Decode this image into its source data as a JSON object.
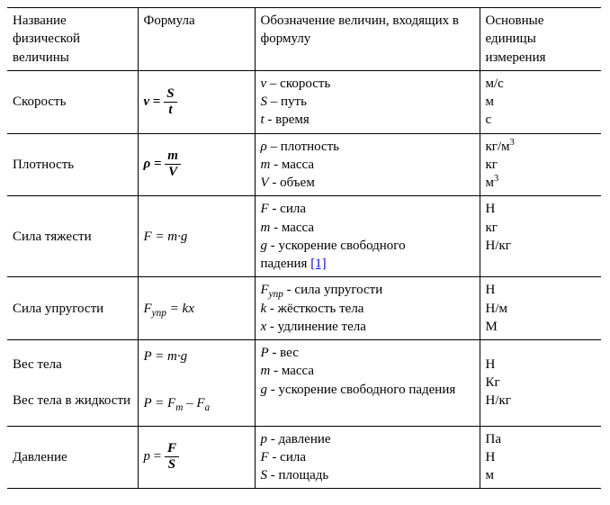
{
  "table": {
    "headers": {
      "c1": "Название физической величины",
      "c2": "Формула",
      "c3": "Обозначение величин, входящих в формулу",
      "c4": "Основные единицы измерения"
    },
    "rows": [
      {
        "name": "Скорость",
        "formula": {
          "kind": "frac",
          "lhs_sym": "v",
          "num": "S",
          "den": "t",
          "bold": true
        },
        "defs": [
          {
            "sym": "v",
            "dash": "–",
            "text": "скорость",
            "ital": true
          },
          {
            "sym": "S",
            "dash": "–",
            "text": "путь",
            "ital": true
          },
          {
            "sym": "t",
            "dash": "-",
            "text": "время",
            "ital": true
          }
        ],
        "units": [
          "м/с",
          "м",
          "с"
        ]
      },
      {
        "name": "Плотность",
        "formula": {
          "kind": "frac",
          "lhs_sym": "ρ",
          "num": "m",
          "den": "V",
          "bold": true
        },
        "defs": [
          {
            "sym": "ρ",
            "dash": "–",
            "text": "плотность",
            "ital": true
          },
          {
            "sym": "m",
            "dash": "-",
            "text": "масса",
            "ital": true
          },
          {
            "sym": "V",
            "dash": "-",
            "text": "объем",
            "ital": true
          }
        ],
        "units": [
          "кг/м³",
          "кг",
          "м³"
        ]
      },
      {
        "name": "Сила тяжести",
        "formula": {
          "kind": "plain",
          "text": "F = m·g",
          "ital": true
        },
        "defs": [
          {
            "sym": "F",
            "dash": "-",
            "text": "сила",
            "ital": true
          },
          {
            "sym": "m",
            "dash": "-",
            "text": "масса",
            "ital": true
          },
          {
            "sym": "g",
            "dash": "-",
            "text": "ускорение свободного",
            "ital": true
          },
          {
            "raw": "падения",
            "ref": "[1]"
          }
        ],
        "units": [
          "Н",
          "кг",
          " Н/кг"
        ]
      },
      {
        "name": "Сила упругости",
        "formula": {
          "kind": "sub",
          "lhs": "F",
          "sub": "упр",
          "rhs": " = kx",
          "ital": true
        },
        "defs": [
          {
            "sym_sub": {
              "base": "F",
              "sub": "упр"
            },
            "dash": "-",
            "text": "сила упругости",
            "ital": true
          },
          {
            "sym": "k",
            "dash": "-",
            "text": "жёсткость тела",
            "ital": true
          },
          {
            "sym": "x",
            "dash": "-",
            "text": "удлинение тела",
            "ital": true
          }
        ],
        "units": [
          "Н",
          "Н/м",
          "М"
        ]
      },
      {
        "name_multi": [
          "Вес тела",
          "",
          "Вес тела в жидкости"
        ],
        "formula_multi": [
          {
            "kind": "plain",
            "text": "P = m·g",
            "ital": true
          },
          {
            "kind": "blank"
          },
          {
            "kind": "subdiff",
            "text": "P = F",
            "s1": "т",
            "mid": " – F",
            "s2": "а",
            "ital": true
          }
        ],
        "defs": [
          {
            "sym": "P",
            "dash": "-",
            "text": "вес",
            "ital": true
          },
          {
            "sym": "m",
            "dash": "-",
            "text": "масса",
            "ital": true,
            "post": " "
          },
          {
            "sym": "g",
            "dash": "-",
            "text": "ускорение свободного падения",
            "ital": true
          }
        ],
        "units": [
          "Н",
          "Кг",
          "Н/кг"
        ],
        "units_valign": "middle"
      },
      {
        "name": "Давление",
        "formula": {
          "kind": "frac",
          "lhs_sym": "p",
          "num": "F",
          "den": "S",
          "bold_rhs": true,
          "ital_lhs": true
        },
        "defs": [
          {
            "sym": "p",
            "dash": "-",
            "text": "давление",
            "ital": true
          },
          {
            "sym": "F",
            "dash": "-",
            "text": "сила",
            "ital": true
          },
          {
            "sym": "S",
            "dash": "-",
            "text": "площадь",
            "ital": true
          }
        ],
        "units": [
          "Па",
          "Н",
          "м"
        ]
      }
    ]
  }
}
